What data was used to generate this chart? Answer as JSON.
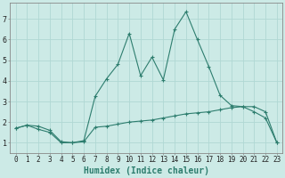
{
  "xlabel": "Humidex (Indice chaleur)",
  "background_color": "#cceae6",
  "grid_color": "#b0d8d4",
  "line_color": "#2d7d6e",
  "x_curve1": [
    0,
    1,
    2,
    3,
    4,
    5,
    6,
    7,
    8,
    9,
    10,
    11,
    12,
    13,
    14,
    15,
    16,
    17,
    18,
    19,
    20,
    21,
    22,
    23
  ],
  "y_curve1": [
    1.7,
    1.85,
    1.8,
    1.6,
    1.05,
    1.0,
    1.1,
    3.25,
    4.1,
    4.8,
    6.3,
    4.25,
    5.15,
    4.05,
    6.5,
    7.35,
    6.0,
    4.7,
    3.3,
    2.8,
    2.75,
    2.5,
    2.2,
    1.0
  ],
  "x_curve2": [
    0,
    1,
    2,
    3,
    4,
    5,
    6,
    7,
    8,
    9,
    10,
    11,
    12,
    13,
    14,
    15,
    16,
    17,
    18,
    19,
    20,
    21,
    22,
    23
  ],
  "y_curve2": [
    1.7,
    1.85,
    1.65,
    1.5,
    1.0,
    1.0,
    1.05,
    1.75,
    1.8,
    1.9,
    2.0,
    2.05,
    2.1,
    2.2,
    2.3,
    2.4,
    2.45,
    2.5,
    2.6,
    2.7,
    2.75,
    2.75,
    2.5,
    1.0
  ],
  "xlim_min": -0.5,
  "xlim_max": 23.5,
  "ylim_min": 0.5,
  "ylim_max": 7.8,
  "yticks": [
    1,
    2,
    3,
    4,
    5,
    6,
    7
  ],
  "xticks": [
    0,
    1,
    2,
    3,
    4,
    5,
    6,
    7,
    8,
    9,
    10,
    11,
    12,
    13,
    14,
    15,
    16,
    17,
    18,
    19,
    20,
    21,
    22,
    23
  ],
  "tick_fontsize": 5.5,
  "xlabel_fontsize": 7,
  "marker_size": 3.5
}
